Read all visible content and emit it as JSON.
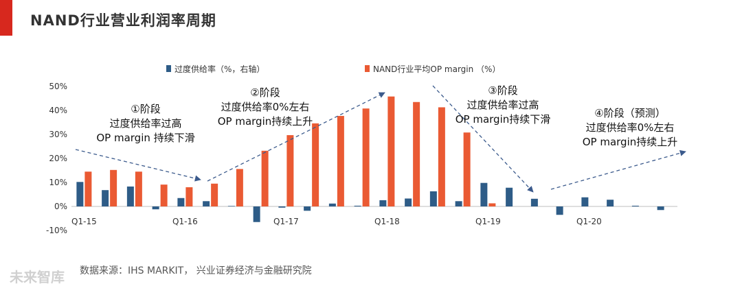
{
  "title": "NAND行业营业利润率周期",
  "source": "数据来源：IHS MARKIT， 兴业证券经济与金融研究院",
  "watermark": "未来智库",
  "colors": {
    "bar_blue": "#2e5c87",
    "bar_orange": "#ea5a33",
    "arrow": "#3b5a8c"
  },
  "chart_data": {
    "type": "bar",
    "ylim": [
      -10,
      50
    ],
    "yticks": [
      "-10%",
      "0%",
      "10%",
      "20%",
      "30%",
      "40%",
      "50%"
    ],
    "ytick_values": [
      -10,
      0,
      10,
      20,
      30,
      40,
      50
    ],
    "categories": [
      "Q1-15",
      "Q2-15",
      "Q3-15",
      "Q4-15",
      "Q1-16",
      "Q2-16",
      "Q3-16",
      "Q4-16",
      "Q1-17",
      "Q2-17",
      "Q3-17",
      "Q4-17",
      "Q1-18",
      "Q2-18",
      "Q3-18",
      "Q4-18",
      "Q1-19",
      "Q2-19",
      "Q3-19",
      "Q4-19",
      "Q1-20",
      "Q2-20",
      "Q3-20",
      "Q4-20"
    ],
    "xtick_labels": [
      {
        "index": 0,
        "label": "Q1-15"
      },
      {
        "index": 4,
        "label": "Q1-16"
      },
      {
        "index": 8,
        "label": "Q1-17"
      },
      {
        "index": 12,
        "label": "Q1-18"
      },
      {
        "index": 16,
        "label": "Q1-19"
      },
      {
        "index": 20,
        "label": "Q1-20"
      }
    ],
    "series": [
      {
        "name": "过度供给率（%，右轴）",
        "color": "#2e5c87",
        "values": [
          10.2,
          6.8,
          8.3,
          -1.2,
          3.5,
          2.2,
          0.2,
          -6.5,
          -0.5,
          -1.8,
          1.2,
          0.3,
          2.6,
          3.3,
          6.3,
          2.2,
          9.8,
          7.8,
          3.2,
          -3.5,
          3.8,
          2.8,
          0.3,
          -1.5
        ]
      },
      {
        "name": "NAND行业平均OP margin （%）",
        "color": "#ea5a33",
        "values": [
          14.5,
          15.2,
          14.5,
          9.1,
          8.0,
          9.5,
          15.6,
          23.2,
          29.7,
          34.6,
          37.7,
          40.8,
          45.8,
          43.5,
          41.3,
          30.8,
          1.3,
          null,
          null,
          null,
          null,
          null,
          null,
          null
        ]
      }
    ],
    "annotations": [
      {
        "id": "stage1",
        "lines": [
          "①阶段",
          "过度供给率过高",
          "OP margin 持续下滑"
        ]
      },
      {
        "id": "stage2",
        "lines": [
          "②阶段",
          "过度供给率0%左右",
          "OP margin持续上升"
        ]
      },
      {
        "id": "stage3",
        "lines": [
          "③阶段",
          "过度供给率过高",
          "OP margin持续下滑"
        ]
      },
      {
        "id": "stage4",
        "lines": [
          "④阶段（预测）",
          "过度供给率0%左右",
          "OP margin持续上升"
        ]
      }
    ]
  }
}
